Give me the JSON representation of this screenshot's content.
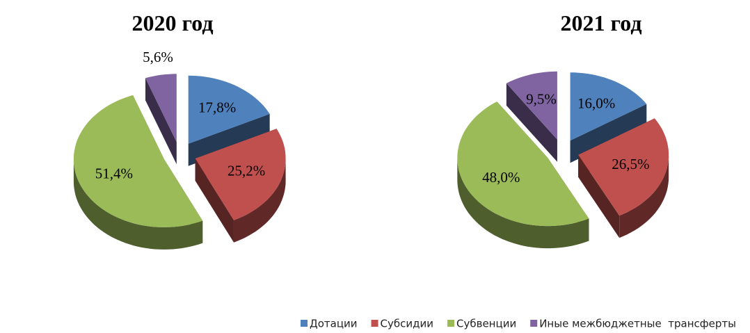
{
  "chart_data": [
    {
      "type": "pie",
      "title": "2020 год",
      "categories": [
        "Дотации",
        "Субсидии",
        "Субвенции",
        "Иные межбюджетные  трансферты"
      ],
      "values": [
        17.8,
        25.2,
        51.4,
        5.6
      ],
      "value_labels": [
        "17,8%",
        "25,2%",
        "51,4%",
        "5,6%"
      ],
      "colors": [
        "#4f81bd",
        "#c0504d",
        "#9bbb59",
        "#8064a2"
      ],
      "legend": "bottom"
    },
    {
      "type": "pie",
      "title": "2021 год",
      "categories": [
        "Дотации",
        "Субсидии",
        "Субвенции",
        "Иные межбюджетные  трансферты"
      ],
      "values": [
        16.0,
        26.5,
        48.0,
        9.5
      ],
      "value_labels": [
        "16,0%",
        "26,5%",
        "48,0%",
        "9,5%"
      ],
      "colors": [
        "#4f81bd",
        "#c0504d",
        "#9bbb59",
        "#8064a2"
      ],
      "legend": "bottom"
    }
  ]
}
